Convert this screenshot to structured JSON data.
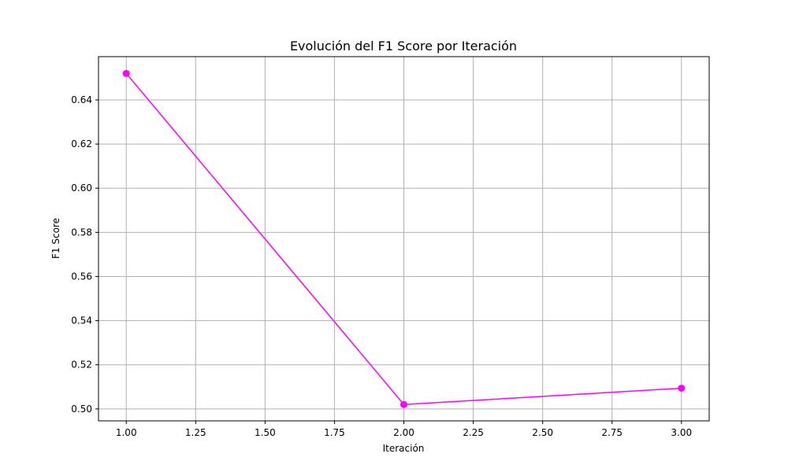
{
  "chart_data": {
    "type": "line",
    "title": "Evolución del F1 Score por Iteración",
    "xlabel": "Iteración",
    "ylabel": "F1 Score",
    "xlim": [
      0.9,
      3.1
    ],
    "ylim": [
      0.4946,
      0.6596
    ],
    "xticks": [
      1.0,
      1.25,
      1.5,
      1.75,
      2.0,
      2.25,
      2.5,
      2.75,
      3.0
    ],
    "xtick_labels": [
      "1.00",
      "1.25",
      "1.50",
      "1.75",
      "2.00",
      "2.25",
      "2.50",
      "2.75",
      "3.00"
    ],
    "yticks": [
      0.5,
      0.52,
      0.54,
      0.56,
      0.58,
      0.6,
      0.62,
      0.64
    ],
    "ytick_labels": [
      "0.50",
      "0.52",
      "0.54",
      "0.56",
      "0.58",
      "0.60",
      "0.62",
      "0.64"
    ],
    "grid": true,
    "series": [
      {
        "name": "F1 Score",
        "color": "#ff00ff",
        "marker": "circle",
        "x": [
          1,
          2,
          3
        ],
        "y": [
          0.652,
          0.502,
          0.5094
        ]
      }
    ]
  }
}
